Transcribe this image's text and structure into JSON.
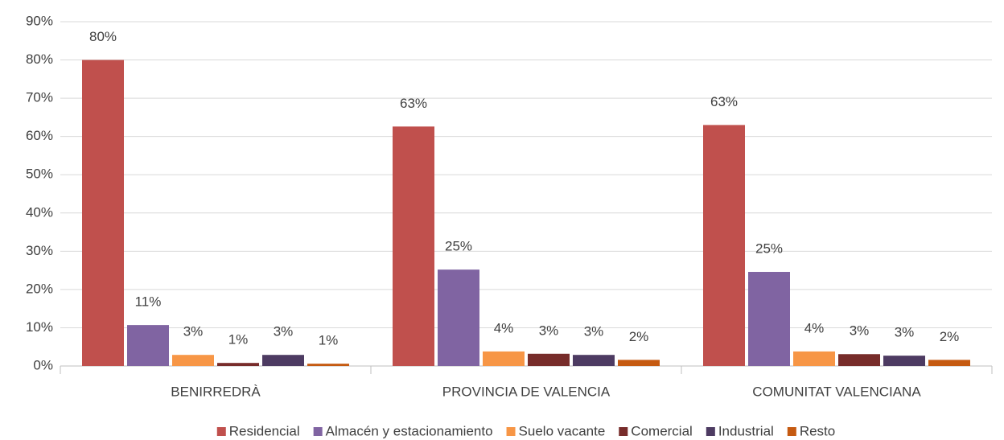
{
  "chart_data": {
    "type": "bar",
    "categories": [
      "BENIRREDRÀ",
      "PROVINCIA DE VALENCIA",
      "COMUNITAT VALENCIANA"
    ],
    "series": [
      {
        "name": "Residencial",
        "color": "#c0504d",
        "values": [
          80,
          62.6,
          63.0
        ],
        "value_labels": [
          "80%",
          "63%",
          "63%"
        ]
      },
      {
        "name": "Almacén y estacionamiento",
        "color": "#8064a2",
        "values": [
          10.7,
          25.2,
          24.6
        ],
        "value_labels": [
          "11%",
          "25%",
          "25%"
        ]
      },
      {
        "name": "Suelo vacante",
        "color": "#f79646",
        "values": [
          2.9,
          3.8,
          3.8
        ],
        "value_labels": [
          "3%",
          "4%",
          "4%"
        ]
      },
      {
        "name": "Comercial",
        "color": "#772c2a",
        "values": [
          0.8,
          3.2,
          3.1
        ],
        "value_labels": [
          "1%",
          "3%",
          "3%"
        ]
      },
      {
        "name": "Industrial",
        "color": "#4d3b62",
        "values": [
          2.9,
          2.9,
          2.7
        ],
        "value_labels": [
          "3%",
          "3%",
          "3%"
        ]
      },
      {
        "name": "Resto",
        "color": "#c55a11",
        "values": [
          0.6,
          1.6,
          1.6
        ],
        "value_labels": [
          "1%",
          "2%",
          "2%"
        ]
      }
    ],
    "ylim": [
      0,
      90
    ],
    "yticks": [
      {
        "value": 0,
        "label": "0%"
      },
      {
        "value": 10,
        "label": "10%"
      },
      {
        "value": 20,
        "label": "20%"
      },
      {
        "value": 30,
        "label": "30%"
      },
      {
        "value": 40,
        "label": "40%"
      },
      {
        "value": 50,
        "label": "50%"
      },
      {
        "value": 60,
        "label": "60%"
      },
      {
        "value": 70,
        "label": "70%"
      },
      {
        "value": 80,
        "label": "80%"
      },
      {
        "value": 90,
        "label": "90%"
      }
    ],
    "grid": true,
    "legend": "bottom"
  }
}
